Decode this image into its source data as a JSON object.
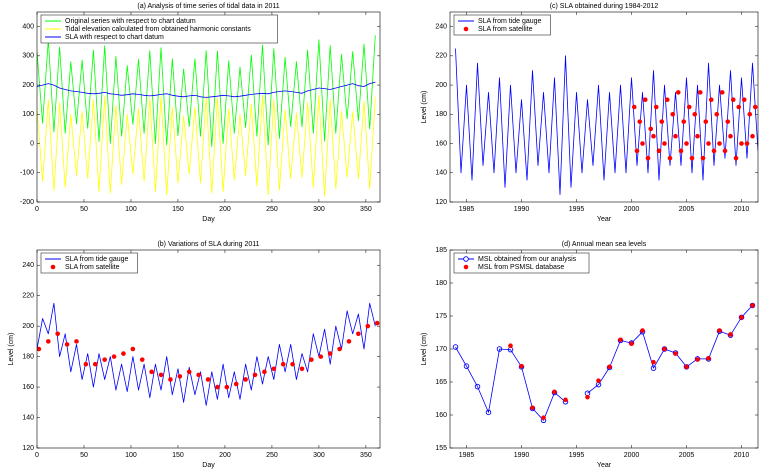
{
  "chart_data": [
    {
      "type": "line",
      "title": "(a) Analysis of time series of tidal data in 2011",
      "x_label": "Day",
      "legend": "upper left",
      "xlim": [
        0,
        365
      ],
      "xticks": [
        0,
        50,
        100,
        150,
        200,
        250,
        300,
        350
      ],
      "ylim": [
        -200,
        450
      ],
      "yticks": [
        -200,
        -100,
        0,
        100,
        200,
        300,
        400
      ],
      "x": [
        0,
        6,
        12,
        18,
        24,
        30,
        36,
        42,
        48,
        54,
        60,
        66,
        72,
        78,
        84,
        90,
        96,
        102,
        108,
        114,
        120,
        126,
        132,
        138,
        144,
        150,
        156,
        162,
        168,
        174,
        180,
        186,
        192,
        198,
        204,
        210,
        216,
        222,
        228,
        234,
        240,
        246,
        252,
        258,
        264,
        270,
        276,
        282,
        288,
        294,
        300,
        306,
        312,
        318,
        324,
        330,
        336,
        342,
        348,
        354,
        360
      ],
      "series": [
        {
          "name": "Original series with respect to chart datum",
          "color": "#00ff00",
          "style": "line",
          "values": [
            315,
            70,
            355,
            40,
            330,
            35,
            280,
            68,
            285,
            52,
            320,
            7,
            335,
            0,
            298,
            25,
            267,
            65,
            288,
            35,
            318,
            0,
            328,
            -5,
            290,
            27,
            255,
            58,
            290,
            25,
            318,
            -10,
            317,
            0,
            283,
            35,
            262,
            55,
            303,
            25,
            337,
            -5,
            325,
            18,
            295,
            58,
            280,
            57,
            320,
            35,
            355,
            8,
            335,
            35,
            305,
            85,
            315,
            78,
            340,
            50,
            370
          ]
        },
        {
          "name": "Tidal elevation calculated from obtained harmonic constants",
          "color": "#ffff00",
          "style": "line",
          "values": [
            120,
            -130,
            150,
            -160,
            140,
            -150,
            100,
            -110,
            110,
            -120,
            150,
            -165,
            160,
            -170,
            130,
            -140,
            100,
            -105,
            120,
            -130,
            155,
            -165,
            160,
            -175,
            125,
            -135,
            95,
            -105,
            125,
            -135,
            160,
            -170,
            155,
            -165,
            120,
            -125,
            100,
            -110,
            135,
            -145,
            165,
            -175,
            150,
            -160,
            115,
            -120,
            105,
            -115,
            140,
            -150,
            165,
            -180,
            150,
            -155,
            110,
            -115,
            110,
            -120,
            145,
            -155,
            160
          ]
        },
        {
          "name": "SLA with respect to chart datum",
          "color": "#0000ff",
          "style": "line",
          "values": [
            195,
            200,
            205,
            200,
            190,
            185,
            180,
            178,
            175,
            172,
            170,
            172,
            175,
            170,
            168,
            165,
            167,
            170,
            168,
            165,
            163,
            165,
            168,
            170,
            165,
            162,
            160,
            163,
            165,
            160,
            158,
            160,
            162,
            165,
            163,
            160,
            162,
            165,
            168,
            170,
            172,
            170,
            175,
            178,
            180,
            178,
            175,
            172,
            180,
            185,
            190,
            188,
            185,
            190,
            195,
            200,
            205,
            198,
            195,
            205,
            210
          ]
        }
      ]
    },
    {
      "type": "line",
      "title": "(b) Variations of SLA during 2011",
      "x_label": "Day",
      "y_label": "Level (cm)",
      "legend": "upper left",
      "xlim": [
        0,
        365
      ],
      "xticks": [
        0,
        50,
        100,
        150,
        200,
        250,
        300,
        350
      ],
      "ylim": [
        120,
        250
      ],
      "yticks": [
        120,
        140,
        160,
        180,
        200,
        220,
        240
      ],
      "series": [
        {
          "name": "SLA from tide gauge",
          "color": "#0000ff",
          "style": "line",
          "x": [
            0,
            6,
            12,
            18,
            24,
            30,
            36,
            42,
            48,
            54,
            60,
            66,
            72,
            78,
            84,
            90,
            96,
            102,
            108,
            114,
            120,
            126,
            132,
            138,
            144,
            150,
            156,
            162,
            168,
            174,
            180,
            186,
            192,
            198,
            204,
            210,
            216,
            222,
            228,
            234,
            240,
            246,
            252,
            258,
            264,
            270,
            276,
            282,
            288,
            294,
            300,
            306,
            312,
            318,
            324,
            330,
            336,
            342,
            348,
            354,
            360
          ],
          "values": [
            185,
            205,
            195,
            215,
            180,
            195,
            170,
            188,
            165,
            182,
            160,
            182,
            165,
            180,
            158,
            175,
            157,
            180,
            158,
            175,
            153,
            175,
            158,
            180,
            155,
            172,
            150,
            173,
            155,
            170,
            148,
            170,
            152,
            175,
            153,
            170,
            152,
            175,
            158,
            180,
            162,
            180,
            165,
            188,
            170,
            188,
            165,
            182,
            170,
            195,
            180,
            198,
            175,
            200,
            185,
            210,
            195,
            208,
            185,
            215,
            200
          ]
        },
        {
          "name": "SLA from satellite",
          "color": "#ff0000",
          "style": "dots",
          "x": [
            2,
            12,
            22,
            32,
            42,
            52,
            62,
            72,
            82,
            92,
            102,
            112,
            122,
            132,
            142,
            152,
            162,
            172,
            182,
            192,
            202,
            212,
            222,
            232,
            242,
            252,
            262,
            272,
            282,
            292,
            302,
            312,
            322,
            332,
            342,
            352,
            362
          ],
          "values": [
            185,
            190,
            195,
            188,
            190,
            175,
            175,
            178,
            180,
            182,
            185,
            178,
            170,
            168,
            165,
            167,
            170,
            168,
            165,
            160,
            160,
            162,
            165,
            168,
            170,
            172,
            175,
            175,
            172,
            178,
            180,
            182,
            185,
            190,
            195,
            200,
            202
          ]
        }
      ]
    },
    {
      "type": "line",
      "title": "(c) SLA obtained during 1984-2012",
      "x_label": "Year",
      "y_label": "Level (cm)",
      "legend": "upper left",
      "xlim": [
        1983.5,
        2011.5
      ],
      "xticks": [
        1985,
        1990,
        1995,
        2000,
        2005,
        2010
      ],
      "ylim": [
        120,
        250
      ],
      "yticks": [
        120,
        140,
        160,
        180,
        200,
        220,
        240
      ],
      "series": [
        {
          "name": "SLA from tide gauge",
          "color": "#0000ff",
          "style": "line",
          "x": [
            1984,
            1984.5,
            1985,
            1985.5,
            1986,
            1986.5,
            1987,
            1987.5,
            1988,
            1988.5,
            1989,
            1989.5,
            1990,
            1990.5,
            1991,
            1991.5,
            1992,
            1992.5,
            1993,
            1993.5,
            1994,
            1994.5,
            1995,
            1995.5,
            1996,
            1996.5,
            1997,
            1997.5,
            1998,
            1998.5,
            1999,
            1999.5,
            2000,
            2000.5,
            2001,
            2001.5,
            2002,
            2002.5,
            2003,
            2003.5,
            2004,
            2004.5,
            2005,
            2005.5,
            2006,
            2006.5,
            2007,
            2007.5,
            2008,
            2008.5,
            2009,
            2009.5,
            2010,
            2010.5,
            2011,
            2011.5
          ],
          "values": [
            225,
            140,
            200,
            135,
            215,
            145,
            195,
            140,
            205,
            130,
            200,
            140,
            190,
            135,
            210,
            145,
            195,
            140,
            205,
            125,
            220,
            130,
            195,
            140,
            190,
            145,
            200,
            135,
            195,
            140,
            200,
            140,
            205,
            145,
            195,
            140,
            210,
            135,
            200,
            145,
            195,
            145,
            205,
            140,
            200,
            135,
            215,
            145,
            200,
            150,
            210,
            145,
            205,
            150,
            215,
            155
          ]
        },
        {
          "name": "SLA from satellite",
          "color": "#ff0000",
          "style": "dots",
          "x": [
            2000.25,
            2000.5,
            2000.75,
            2001,
            2001.25,
            2001.5,
            2001.75,
            2002,
            2002.25,
            2002.5,
            2002.75,
            2003,
            2003.25,
            2003.5,
            2003.75,
            2004,
            2004.25,
            2004.5,
            2004.75,
            2005,
            2005.25,
            2005.5,
            2005.75,
            2006,
            2006.25,
            2006.5,
            2006.75,
            2007,
            2007.25,
            2007.5,
            2007.75,
            2008,
            2008.25,
            2008.5,
            2008.75,
            2009,
            2009.25,
            2009.5,
            2009.75,
            2010,
            2010.25,
            2010.5,
            2010.75,
            2011,
            2011.25
          ],
          "values": [
            185,
            155,
            175,
            160,
            190,
            150,
            170,
            165,
            185,
            155,
            175,
            160,
            190,
            150,
            180,
            165,
            195,
            155,
            175,
            160,
            185,
            150,
            180,
            165,
            195,
            150,
            175,
            160,
            190,
            155,
            180,
            160,
            195,
            155,
            175,
            165,
            190,
            150,
            185,
            160,
            190,
            160,
            180,
            165,
            185
          ]
        }
      ]
    },
    {
      "type": "line",
      "title": "(d) Annual mean sea levels",
      "x_label": "Year",
      "y_label": "Level (cm)",
      "legend": "upper left",
      "xlim": [
        1983.5,
        2011.5
      ],
      "xticks": [
        1985,
        1990,
        1995,
        2000,
        2005,
        2010
      ],
      "ylim": [
        155,
        185
      ],
      "yticks": [
        155,
        160,
        165,
        170,
        175,
        180,
        185
      ],
      "x": [
        1984,
        1985,
        1986,
        1987,
        1988,
        1989,
        1990,
        1991,
        1992,
        1993,
        1994,
        1995,
        1996,
        1997,
        1998,
        1999,
        2000,
        2001,
        2002,
        2003,
        2004,
        2005,
        2006,
        2007,
        2008,
        2009,
        2010,
        2011
      ],
      "series": [
        {
          "name": "MSL obtained from our analysis",
          "color": "#0000ff",
          "style": "line-circles",
          "values": [
            170.3,
            167.4,
            164.3,
            160.4,
            170.0,
            169.9,
            167.3,
            161.0,
            159.2,
            163.4,
            162.0,
            null,
            163.3,
            164.6,
            167.2,
            171.3,
            170.9,
            172.6,
            167.1,
            170.0,
            169.4,
            167.3,
            168.5,
            168.5,
            172.7,
            172.1,
            174.8,
            176.6
          ]
        },
        {
          "name": "MSL from PSMSL database",
          "color": "#ff0000",
          "style": "dots",
          "values": [
            null,
            null,
            null,
            null,
            null,
            170.5,
            167.4,
            161.1,
            159.6,
            163.5,
            162.3,
            null,
            162.7,
            165.2,
            167.3,
            171.4,
            170.8,
            172.8,
            168.0,
            170.0,
            169.3,
            167.3,
            168.4,
            168.6,
            172.8,
            172.2,
            174.8,
            176.6
          ]
        }
      ]
    }
  ]
}
